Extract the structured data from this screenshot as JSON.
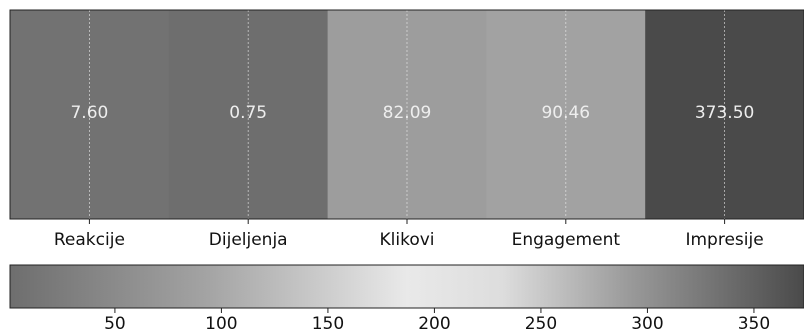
{
  "chart_data": {
    "type": "heatmap",
    "categories": [
      "Reakcije",
      "Dijeljenja",
      "Klikovi",
      "Engagement",
      "Impresije"
    ],
    "values": [
      7.6,
      0.75,
      82.09,
      90.46,
      373.5
    ],
    "value_labels": [
      "7.60",
      "0.75",
      "82.09",
      "90.46",
      "373.50"
    ],
    "grid": true,
    "colorbar": {
      "orientation": "horizontal",
      "ticks": [
        "50",
        "100",
        "150",
        "200",
        "250",
        "300",
        "350"
      ],
      "range": [
        0.75,
        373.5
      ],
      "colormap": "gray-diverging"
    }
  }
}
